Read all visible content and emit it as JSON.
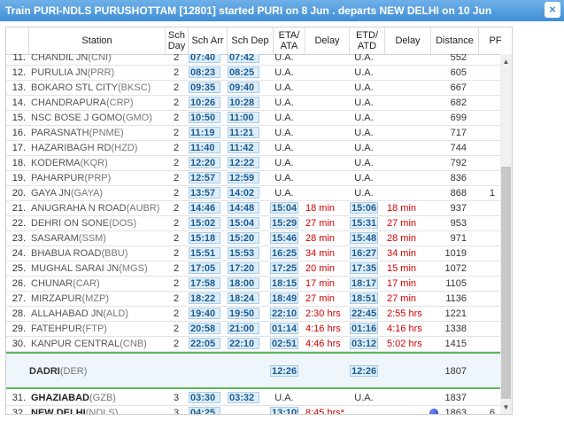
{
  "title": "Train PURI-NDLS PURUSHOTTAM [12801] started PURI on 8 Jun . departs NEW DELHI on 10 Jun",
  "close_label": "×",
  "headers": {
    "station": "Station",
    "sch_day": "Sch Day",
    "sch_arr": "Sch Arr",
    "sch_dep": "Sch Dep",
    "eta": "ETA/ ATA",
    "delay1": "Delay",
    "etd": "ETD/ ATD",
    "delay2": "Delay",
    "distance": "Distance",
    "pf": "PF"
  },
  "rows_top": [
    {
      "sno": "11.",
      "stn": "CHANDIL JN",
      "code": "(CNI)",
      "day": "2",
      "arr": "07:40",
      "dep": "07:42",
      "eta": "U.A.",
      "d1": "",
      "etd": "U.A.",
      "d2": "",
      "dist": "552",
      "pf": ""
    },
    {
      "sno": "12.",
      "stn": "PURULIA JN",
      "code": "(PRR)",
      "day": "2",
      "arr": "08:23",
      "dep": "08:25",
      "eta": "U.A.",
      "d1": "",
      "etd": "U.A.",
      "d2": "",
      "dist": "605",
      "pf": ""
    },
    {
      "sno": "13.",
      "stn": "BOKARO STL CITY",
      "code": "(BKSC)",
      "day": "2",
      "arr": "09:35",
      "dep": "09:40",
      "eta": "U.A.",
      "d1": "",
      "etd": "U.A.",
      "d2": "",
      "dist": "667",
      "pf": ""
    },
    {
      "sno": "14.",
      "stn": "CHANDRAPURA",
      "code": "(CRP)",
      "day": "2",
      "arr": "10:26",
      "dep": "10:28",
      "eta": "U.A.",
      "d1": "",
      "etd": "U.A.",
      "d2": "",
      "dist": "682",
      "pf": ""
    },
    {
      "sno": "15.",
      "stn": "NSC BOSE J GOMO",
      "code": "(GMO)",
      "day": "2",
      "arr": "10:50",
      "dep": "11:00",
      "eta": "U.A.",
      "d1": "",
      "etd": "U.A.",
      "d2": "",
      "dist": "699",
      "pf": ""
    },
    {
      "sno": "16.",
      "stn": "PARASNATH",
      "code": "(PNME)",
      "day": "2",
      "arr": "11:19",
      "dep": "11:21",
      "eta": "U.A.",
      "d1": "",
      "etd": "U.A.",
      "d2": "",
      "dist": "717",
      "pf": ""
    },
    {
      "sno": "17.",
      "stn": "HAZARIBAGH RD",
      "code": "(HZD)",
      "day": "2",
      "arr": "11:40",
      "dep": "11:42",
      "eta": "U.A.",
      "d1": "",
      "etd": "U.A.",
      "d2": "",
      "dist": "744",
      "pf": ""
    },
    {
      "sno": "18.",
      "stn": "KODERMA",
      "code": "(KQR)",
      "day": "2",
      "arr": "12:20",
      "dep": "12:22",
      "eta": "U.A.",
      "d1": "",
      "etd": "U.A.",
      "d2": "",
      "dist": "792",
      "pf": ""
    },
    {
      "sno": "19.",
      "stn": "PAHARPUR",
      "code": "(PRP)",
      "day": "2",
      "arr": "12:57",
      "dep": "12:59",
      "eta": "U.A.",
      "d1": "",
      "etd": "U.A.",
      "d2": "",
      "dist": "836",
      "pf": ""
    },
    {
      "sno": "20.",
      "stn": "GAYA JN",
      "code": "(GAYA)",
      "day": "2",
      "arr": "13:57",
      "dep": "14:02",
      "eta": "U.A.",
      "d1": "",
      "etd": "U.A.",
      "d2": "",
      "dist": "868",
      "pf": "1"
    },
    {
      "sno": "21.",
      "stn": "ANUGRAHA N ROAD",
      "code": "(AUBR)",
      "day": "2",
      "arr": "14:46",
      "dep": "14:48",
      "eta": "15:04",
      "d1": "18 min",
      "etd": "15:06",
      "d2": "18 min",
      "dist": "937",
      "pf": ""
    },
    {
      "sno": "22.",
      "stn": "DEHRI ON SONE",
      "code": "(DOS)",
      "day": "2",
      "arr": "15:02",
      "dep": "15:04",
      "eta": "15:29",
      "d1": "27 min",
      "etd": "15:31",
      "d2": "27 min",
      "dist": "953",
      "pf": ""
    },
    {
      "sno": "23.",
      "stn": "SASARAM",
      "code": "(SSM)",
      "day": "2",
      "arr": "15:18",
      "dep": "15:20",
      "eta": "15:46",
      "d1": "28 min",
      "etd": "15:48",
      "d2": "28 min",
      "dist": "971",
      "pf": ""
    },
    {
      "sno": "24.",
      "stn": "BHABUA ROAD",
      "code": "(BBU)",
      "day": "2",
      "arr": "15:51",
      "dep": "15:53",
      "eta": "16:25",
      "d1": "34 min",
      "etd": "16:27",
      "d2": "34 min",
      "dist": "1019",
      "pf": ""
    },
    {
      "sno": "25.",
      "stn": "MUGHAL SARAI JN",
      "code": "(MGS)",
      "day": "2",
      "arr": "17:05",
      "dep": "17:20",
      "eta": "17:25",
      "d1": "20 min",
      "etd": "17:35",
      "d2": "15 min",
      "dist": "1072",
      "pf": ""
    },
    {
      "sno": "26.",
      "stn": "CHUNAR",
      "code": "(CAR)",
      "day": "2",
      "arr": "17:58",
      "dep": "18:00",
      "eta": "18:15",
      "d1": "17 min",
      "etd": "18:17",
      "d2": "17 min",
      "dist": "1105",
      "pf": ""
    },
    {
      "sno": "27.",
      "stn": "MIRZAPUR",
      "code": "(MZP)",
      "day": "2",
      "arr": "18:22",
      "dep": "18:24",
      "eta": "18:49",
      "d1": "27 min",
      "etd": "18:51",
      "d2": "27 min",
      "dist": "1136",
      "pf": ""
    },
    {
      "sno": "28.",
      "stn": "ALLAHABAD JN",
      "code": "(ALD)",
      "day": "2",
      "arr": "19:40",
      "dep": "19:50",
      "eta": "22:10",
      "d1": "2:30 hrs",
      "etd": "22:45",
      "d2": "2:55 hrs",
      "dist": "1221",
      "pf": ""
    },
    {
      "sno": "29.",
      "stn": "FATEHPUR",
      "code": "(FTP)",
      "day": "2",
      "arr": "20:58",
      "dep": "21:00",
      "eta": "01:14",
      "d1": "4:16 hrs",
      "etd": "01:16",
      "d2": "4:16 hrs",
      "dist": "1338",
      "pf": ""
    },
    {
      "sno": "30.",
      "stn": "KANPUR CENTRAL",
      "code": "(CNB)",
      "day": "2",
      "arr": "22:05",
      "dep": "22:10",
      "eta": "02:51",
      "d1": "4:46 hrs",
      "etd": "03:12",
      "d2": "5:02 hrs",
      "dist": "1415",
      "pf": ""
    }
  ],
  "current": {
    "stn": "DADRI",
    "code": "(DER)",
    "eta": "12:26",
    "etd": "12:26",
    "dist": "1807"
  },
  "rows_bottom": [
    {
      "sno": "31.",
      "stn": "GHAZIABAD",
      "code": "(GZB)",
      "day": "3",
      "arr": "03:30",
      "dep": "03:32",
      "eta": "U.A.",
      "d1": "",
      "etd": "U.A.",
      "d2": "",
      "dist": "1837",
      "pf": ""
    },
    {
      "sno": "32.",
      "stn": "NEW DELHI",
      "code": "(NDLS)",
      "day": "3",
      "arr": "04:25",
      "dep": "",
      "eta": "13:10*",
      "d1": "8:45 hrs*",
      "etd": "",
      "d2": "",
      "dist": "1863",
      "pf": "6"
    }
  ]
}
